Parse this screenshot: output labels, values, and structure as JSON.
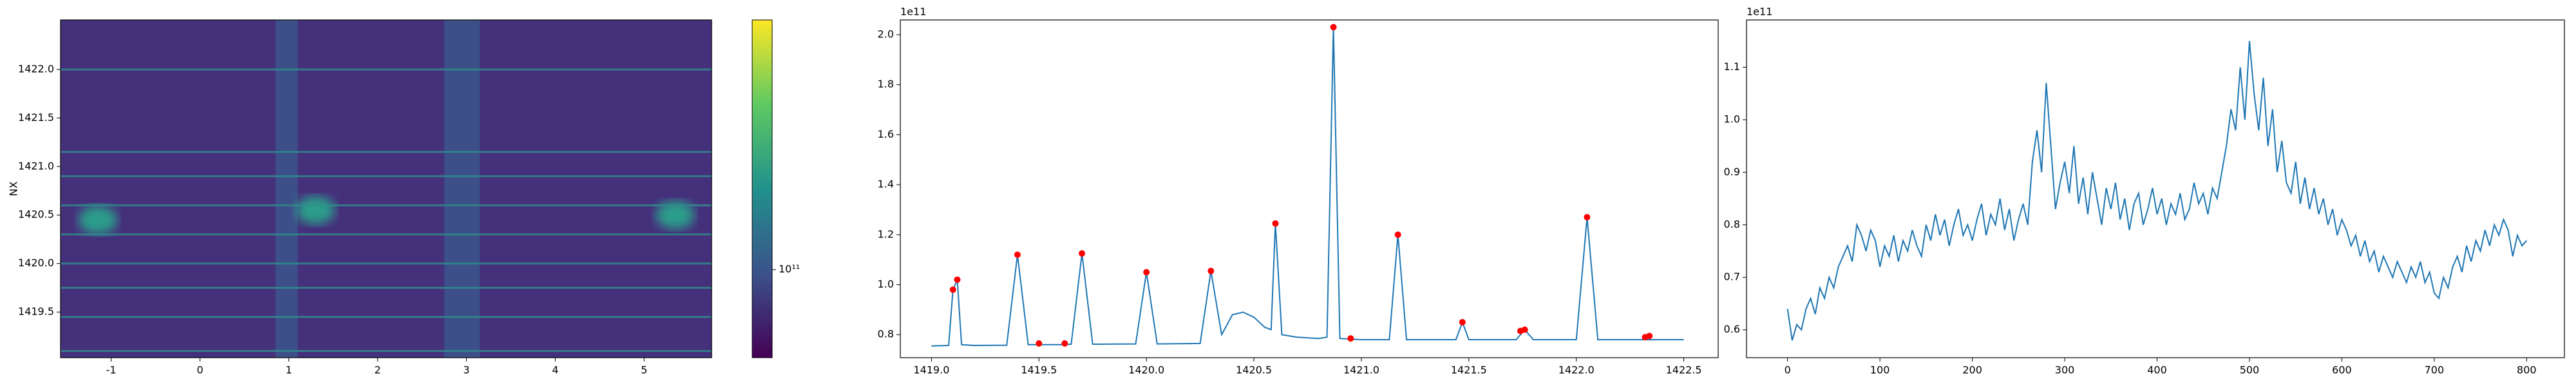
{
  "chart_data": [
    {
      "type": "heatmap",
      "ylabel": "NX",
      "xlim": [
        -1.57,
        5.76
      ],
      "ylim": [
        1419.03,
        1422.51
      ],
      "xticks": [
        -1,
        0,
        1,
        2,
        3,
        4,
        5
      ],
      "yticks": [
        1419.5,
        {
          "value": 1420,
          "label": "1420.0"
        },
        1420.5,
        {
          "value": 1421,
          "label": "1421.0"
        },
        1421.5,
        {
          "value": 1422,
          "label": "1422.0"
        }
      ],
      "background_color": "#45307c",
      "line_color": "#2f8f8c",
      "band_color": "#3a5c8e",
      "spot_color": "#2a9d8a",
      "lines_y": [
        1419.1,
        1419.45,
        1419.75,
        1420.0,
        1420.3,
        1420.6,
        1420.9,
        1421.15,
        1422.0
      ],
      "bands_x": [
        [
          0.85,
          1.1
        ],
        [
          2.75,
          3.15
        ]
      ],
      "spots": [
        [
          -1.15,
          1420.45
        ],
        [
          1.3,
          1420.55
        ],
        [
          5.35,
          1420.5
        ]
      ],
      "colorbar": {
        "log": true,
        "clim": [
          77000000000.0,
          210000000000.0
        ],
        "ticks": [
          {
            "value": 100000000000.0,
            "label": "10¹¹"
          }
        ]
      }
    },
    {
      "type": "line",
      "offset_text": "1e11",
      "xlim": [
        1418.855,
        1422.66
      ],
      "ylim": [
        0.708,
        2.059
      ],
      "xticks": [
        {
          "value": 1419,
          "label": "1419.0"
        },
        1419.5,
        {
          "value": 1420,
          "label": "1420.0"
        },
        1420.5,
        {
          "value": 1421,
          "label": "1421.0"
        },
        1421.5,
        {
          "value": 1422,
          "label": "1422.0"
        },
        1422.5
      ],
      "yticks": [
        0.8,
        {
          "value": 1,
          "label": "1.0"
        },
        1.2,
        1.4,
        1.6,
        1.8,
        {
          "value": 2,
          "label": "2.0"
        }
      ],
      "series": [
        {
          "color": "#1f77b4",
          "mode": "line",
          "x": [
            1419.0,
            1419.08,
            1419.1,
            1419.12,
            1419.14,
            1419.2,
            1419.35,
            1419.4,
            1419.45,
            1419.6,
            1419.65,
            1419.7,
            1419.75,
            1419.95,
            1420.0,
            1420.05,
            1420.25,
            1420.3,
            1420.35,
            1420.4,
            1420.45,
            1420.5,
            1420.55,
            1420.58,
            1420.6,
            1420.63,
            1420.7,
            1420.8,
            1420.84,
            1420.87,
            1420.9,
            1421.0,
            1421.13,
            1421.17,
            1421.21,
            1421.44,
            1421.47,
            1421.5,
            1421.72,
            1421.76,
            1421.8,
            1422.0,
            1422.05,
            1422.1,
            1422.3,
            1422.5
          ],
          "values": [
            0.755,
            0.757,
            0.98,
            1.02,
            0.76,
            0.757,
            0.758,
            1.12,
            0.76,
            0.76,
            0.762,
            1.125,
            0.762,
            0.763,
            1.05,
            0.763,
            0.765,
            1.055,
            0.8,
            0.88,
            0.89,
            0.87,
            0.83,
            0.82,
            1.245,
            0.8,
            0.79,
            0.785,
            0.79,
            2.03,
            0.785,
            0.78,
            0.78,
            1.2,
            0.78,
            0.78,
            0.85,
            0.78,
            0.78,
            0.82,
            0.78,
            0.78,
            1.27,
            0.78,
            0.78,
            0.78
          ]
        },
        {
          "color": "#ff0000",
          "mode": "markers",
          "x": [
            1419.1,
            1419.12,
            1419.4,
            1419.5,
            1419.62,
            1419.7,
            1420.0,
            1420.3,
            1420.6,
            1420.87,
            1420.95,
            1421.17,
            1421.47,
            1421.74,
            1421.76,
            1422.05,
            1422.32,
            1422.34
          ],
          "values": [
            0.98,
            1.02,
            1.12,
            0.765,
            0.765,
            1.125,
            1.05,
            1.055,
            1.245,
            2.03,
            0.785,
            1.2,
            0.85,
            0.815,
            0.82,
            1.27,
            0.79,
            0.795
          ]
        }
      ]
    },
    {
      "type": "line",
      "offset_text": "1e11",
      "xlim": [
        -44.4,
        840.9
      ],
      "ylim": [
        0.547,
        1.19
      ],
      "xticks": [
        0,
        100,
        200,
        300,
        400,
        500,
        600,
        700,
        800
      ],
      "yticks": [
        0.6,
        0.7,
        0.8,
        0.9,
        {
          "value": 1,
          "label": "1.0"
        },
        1.1
      ],
      "series": [
        {
          "color": "#1f77b4",
          "mode": "line",
          "x": [
            0,
            5,
            10,
            15,
            20,
            25,
            30,
            35,
            40,
            45,
            50,
            55,
            60,
            65,
            70,
            75,
            80,
            85,
            90,
            95,
            100,
            105,
            110,
            115,
            120,
            125,
            130,
            135,
            140,
            145,
            150,
            155,
            160,
            165,
            170,
            175,
            180,
            185,
            190,
            195,
            200,
            205,
            210,
            215,
            220,
            225,
            230,
            235,
            240,
            245,
            250,
            255,
            260,
            265,
            270,
            275,
            280,
            285,
            290,
            295,
            300,
            305,
            310,
            315,
            320,
            325,
            330,
            335,
            340,
            345,
            350,
            355,
            360,
            365,
            370,
            375,
            380,
            385,
            390,
            395,
            400,
            405,
            410,
            415,
            420,
            425,
            430,
            435,
            440,
            445,
            450,
            455,
            460,
            465,
            470,
            475,
            480,
            485,
            490,
            495,
            500,
            505,
            510,
            515,
            520,
            525,
            530,
            535,
            540,
            545,
            550,
            555,
            560,
            565,
            570,
            575,
            580,
            585,
            590,
            595,
            600,
            605,
            610,
            615,
            620,
            625,
            630,
            635,
            640,
            645,
            650,
            655,
            660,
            665,
            670,
            675,
            680,
            685,
            690,
            695,
            700,
            705,
            710,
            715,
            720,
            725,
            730,
            735,
            740,
            745,
            750,
            755,
            760,
            765,
            770,
            775,
            780,
            785,
            790,
            795,
            800
          ],
          "values": [
            0.64,
            0.58,
            0.61,
            0.6,
            0.64,
            0.66,
            0.63,
            0.68,
            0.66,
            0.7,
            0.68,
            0.72,
            0.74,
            0.76,
            0.73,
            0.8,
            0.78,
            0.75,
            0.79,
            0.77,
            0.72,
            0.76,
            0.74,
            0.78,
            0.73,
            0.77,
            0.75,
            0.79,
            0.76,
            0.74,
            0.8,
            0.77,
            0.82,
            0.78,
            0.81,
            0.76,
            0.8,
            0.83,
            0.78,
            0.8,
            0.77,
            0.81,
            0.84,
            0.78,
            0.82,
            0.8,
            0.85,
            0.79,
            0.83,
            0.77,
            0.81,
            0.84,
            0.8,
            0.92,
            0.98,
            0.9,
            1.07,
            0.95,
            0.83,
            0.88,
            0.92,
            0.86,
            0.95,
            0.84,
            0.89,
            0.82,
            0.9,
            0.85,
            0.8,
            0.87,
            0.83,
            0.88,
            0.81,
            0.85,
            0.79,
            0.84,
            0.86,
            0.8,
            0.83,
            0.87,
            0.82,
            0.85,
            0.8,
            0.84,
            0.82,
            0.86,
            0.81,
            0.83,
            0.88,
            0.84,
            0.86,
            0.82,
            0.87,
            0.85,
            0.9,
            0.95,
            1.02,
            0.98,
            1.1,
            1.0,
            1.15,
            1.05,
            0.98,
            1.08,
            0.95,
            1.02,
            0.9,
            0.96,
            0.88,
            0.86,
            0.92,
            0.84,
            0.89,
            0.83,
            0.87,
            0.82,
            0.85,
            0.8,
            0.83,
            0.78,
            0.81,
            0.79,
            0.76,
            0.78,
            0.74,
            0.77,
            0.73,
            0.75,
            0.71,
            0.74,
            0.72,
            0.7,
            0.73,
            0.71,
            0.69,
            0.72,
            0.7,
            0.73,
            0.69,
            0.71,
            0.67,
            0.66,
            0.7,
            0.68,
            0.72,
            0.74,
            0.71,
            0.76,
            0.73,
            0.77,
            0.75,
            0.79,
            0.76,
            0.8,
            0.78,
            0.81,
            0.79,
            0.74,
            0.78,
            0.76,
            0.77
          ]
        }
      ]
    }
  ]
}
